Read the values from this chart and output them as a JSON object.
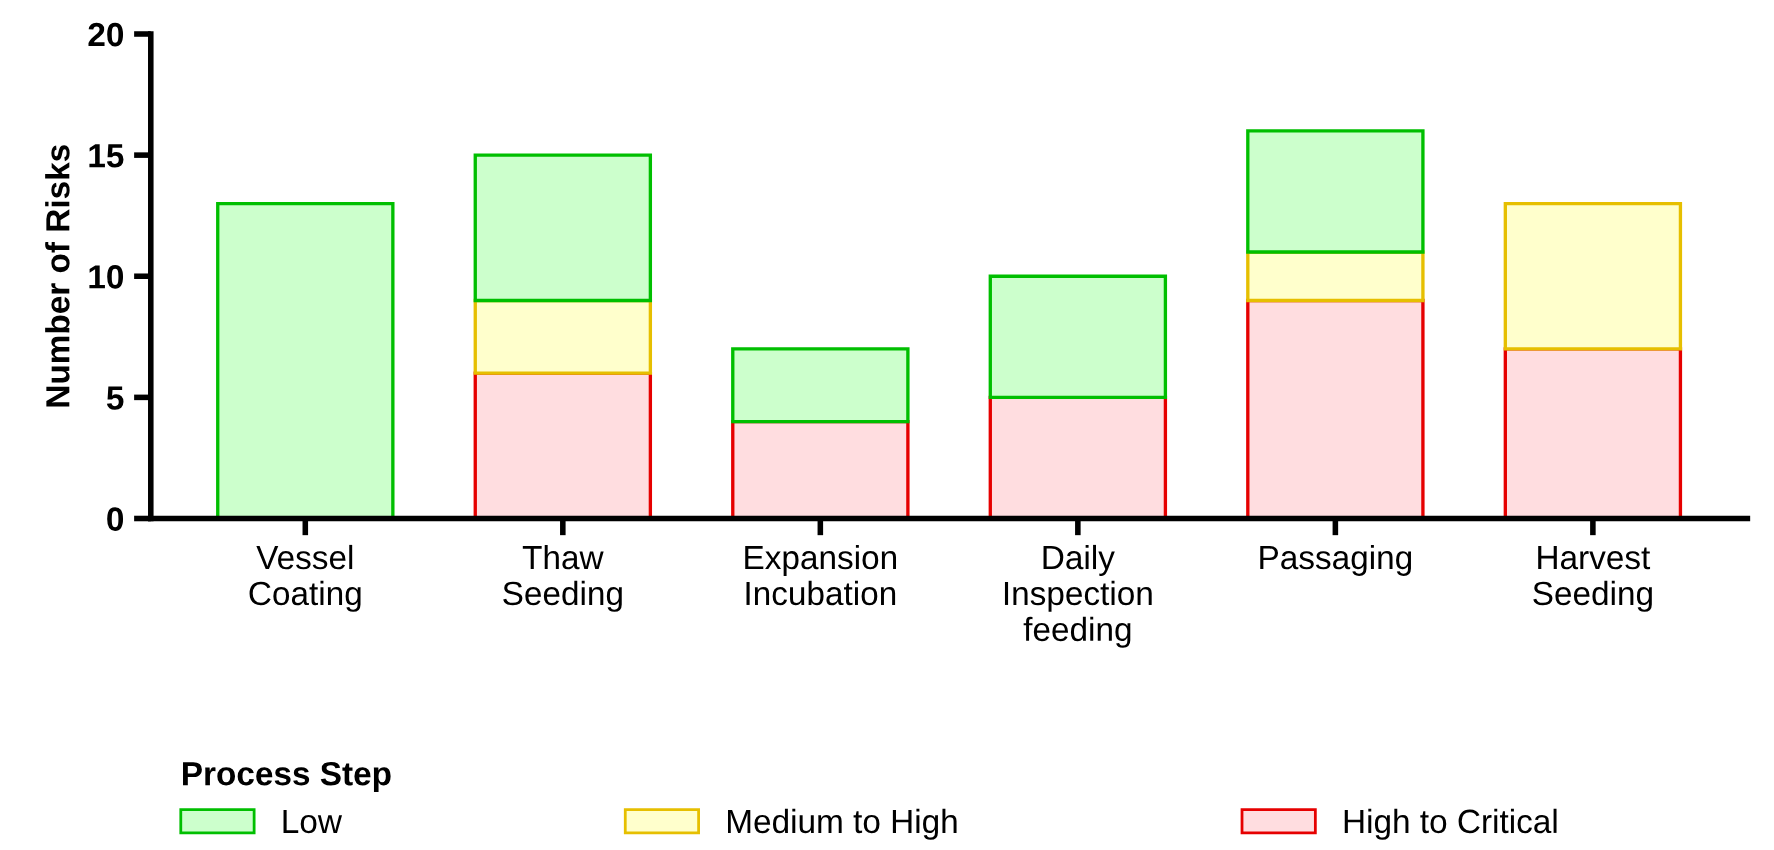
{
  "chart_data": {
    "type": "bar",
    "stacked": true,
    "ylabel": "Number of Risks",
    "legend_title": "Process Step",
    "legend": "bottom",
    "grid": false,
    "categories": [
      "Vessel\nCoating",
      "Thaw\nSeeding",
      "Expansion\nIncubation",
      "Daily\nInspection\nfeeding",
      "Passaging",
      "Harvest\nSeeding"
    ],
    "series": [
      {
        "name": "High to Critical",
        "color": "#ffdde0",
        "values": [
          null,
          6,
          4,
          5,
          9,
          7
        ]
      },
      {
        "name": "Medium to High",
        "color": "#ffffcc",
        "values": [
          null,
          3,
          null,
          null,
          2,
          6
        ]
      },
      {
        "name": "Low",
        "color": "#ccffcc",
        "values": [
          13,
          6,
          3,
          5,
          5,
          null
        ]
      }
    ],
    "ylim": [
      0,
      20
    ],
    "yticks": [
      0,
      5,
      10,
      15,
      20
    ]
  }
}
